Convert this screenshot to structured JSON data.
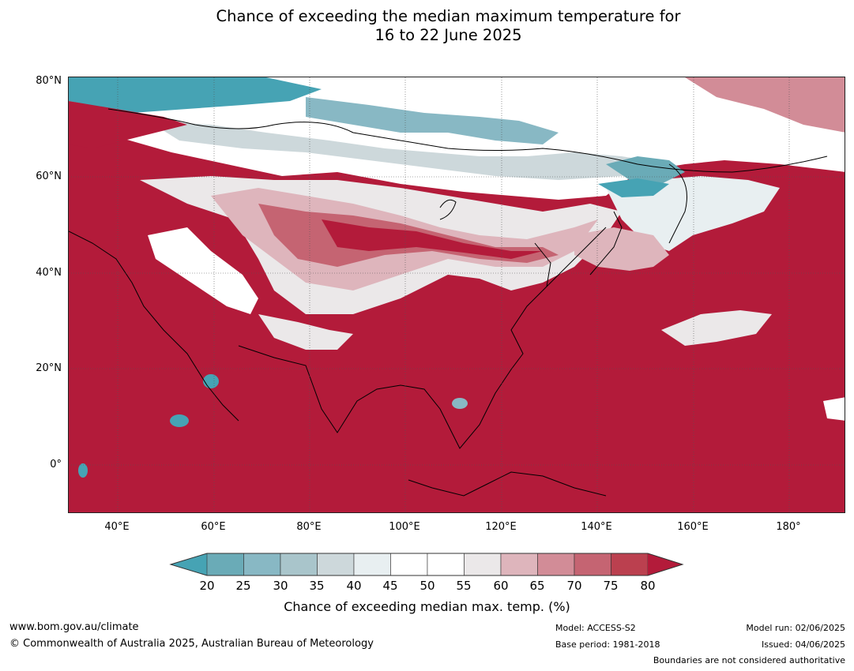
{
  "title": {
    "line1": "Chance of exceeding the median maximum temperature for",
    "line2": "16 to 22 June 2025"
  },
  "axes": {
    "lat_labels": [
      "80°N",
      "60°N",
      "40°N",
      "20°N",
      "0°"
    ],
    "lon_labels": [
      "40°E",
      "60°E",
      "80°E",
      "100°E",
      "120°E",
      "140°E",
      "160°E",
      "180°"
    ]
  },
  "legend": {
    "label": "Chance of exceeding median max. temp. (%)",
    "ticks": [
      "20",
      "25",
      "30",
      "35",
      "40",
      "45",
      "50",
      "55",
      "60",
      "65",
      "70",
      "75",
      "80"
    ],
    "colors": {
      "lt20": "#46a3b4",
      "b20_25": "#6aabb7",
      "b25_30": "#88b8c4",
      "b30_35": "#a9c5cb",
      "b35_40": "#cdd8db",
      "b40_45": "#e8eff1",
      "b45_50": "#ffffff",
      "b50_55": "#ffffff",
      "b55_60": "#ebe8e9",
      "b60_65": "#deb5bc",
      "b65_70": "#d28c97",
      "b70_75": "#c56472",
      "b75_80": "#bb404f",
      "gt80": "#b31b3a"
    }
  },
  "footer": {
    "website": "www.bom.gov.au/climate",
    "copyright": "© Commonwealth of Australia 2025, Australian Bureau of Meteorology",
    "model": "Model: ACCESS-S2",
    "base_period": "Base period: 1981-2018",
    "model_run": "Model run: 02/06/2025",
    "issued": "Issued: 04/06/2025",
    "boundaries": "Boundaries are not considered authoritative"
  }
}
